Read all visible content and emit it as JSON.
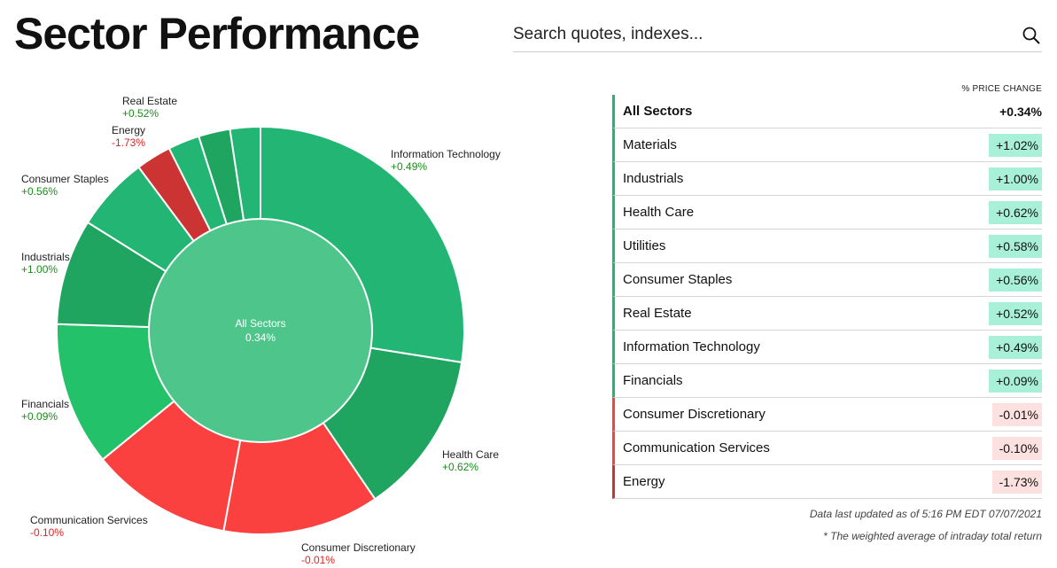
{
  "header": {
    "title": "Sector Performance"
  },
  "search": {
    "placeholder": "Search quotes, indexes..."
  },
  "colors": {
    "strong_green": "#22b573",
    "dark_green": "#1fa55f",
    "bright_green": "#23c26a",
    "center_green": "#4ec68b",
    "red": "#fb4140",
    "dark_red": "#cc3333",
    "pos_text": "#1a8c1a",
    "neg_text": "#e02424",
    "pos_fill": "#a8f0d8",
    "neg_fill": "#fde0e0"
  },
  "chart_data": {
    "type": "pie",
    "center": {
      "label": "All Sectors",
      "value": "0.34%"
    },
    "slices": [
      {
        "name": "Information Technology",
        "value": "+0.49%",
        "weight": 27.5,
        "color": "#22b573"
      },
      {
        "name": "Health Care",
        "value": "+0.62%",
        "weight": 13.0,
        "color": "#1fa55f"
      },
      {
        "name": "Consumer Discretionary",
        "value": "-0.01%",
        "weight": 12.4,
        "color": "#fb4140"
      },
      {
        "name": "Communication Services",
        "value": "-0.10%",
        "weight": 11.2,
        "color": "#fb4140"
      },
      {
        "name": "Financials",
        "value": "+0.09%",
        "weight": 11.4,
        "color": "#23c26a"
      },
      {
        "name": "Industrials",
        "value": "+1.00%",
        "weight": 8.4,
        "color": "#1fa55f"
      },
      {
        "name": "Consumer Staples",
        "value": "+0.56%",
        "weight": 5.9,
        "color": "#22b573"
      },
      {
        "name": "Energy",
        "value": "-1.73%",
        "weight": 2.8,
        "color": "#cc3333"
      },
      {
        "name": "",
        "value": "",
        "weight": 2.5,
        "color": "#22b573"
      },
      {
        "name": "Real Estate",
        "value": "+0.52%",
        "weight": 2.5,
        "color": "#1fa55f"
      },
      {
        "name": "",
        "value": "",
        "weight": 2.4,
        "color": "#22b573"
      }
    ]
  },
  "table": {
    "header": "% PRICE CHANGE",
    "all": {
      "name": "All Sectors",
      "value": "+0.34%"
    },
    "rows": [
      {
        "name": "Materials",
        "value": "+1.02%",
        "dir": "pos"
      },
      {
        "name": "Industrials",
        "value": "+1.00%",
        "dir": "pos"
      },
      {
        "name": "Health Care",
        "value": "+0.62%",
        "dir": "pos"
      },
      {
        "name": "Utilities",
        "value": "+0.58%",
        "dir": "pos"
      },
      {
        "name": "Consumer Staples",
        "value": "+0.56%",
        "dir": "pos"
      },
      {
        "name": "Real Estate",
        "value": "+0.52%",
        "dir": "pos"
      },
      {
        "name": "Information Technology",
        "value": "+0.49%",
        "dir": "pos"
      },
      {
        "name": "Financials",
        "value": "+0.09%",
        "dir": "pos"
      },
      {
        "name": "Consumer Discretionary",
        "value": "-0.01%",
        "dir": "neg"
      },
      {
        "name": "Communication Services",
        "value": "-0.10%",
        "dir": "neg"
      },
      {
        "name": "Energy",
        "value": "-1.73%",
        "dir": "negstrong"
      }
    ]
  },
  "footer": {
    "updated": "Data last updated as of 5:16 PM EDT 07/07/2021",
    "note": "* The weighted average of intraday total return"
  }
}
